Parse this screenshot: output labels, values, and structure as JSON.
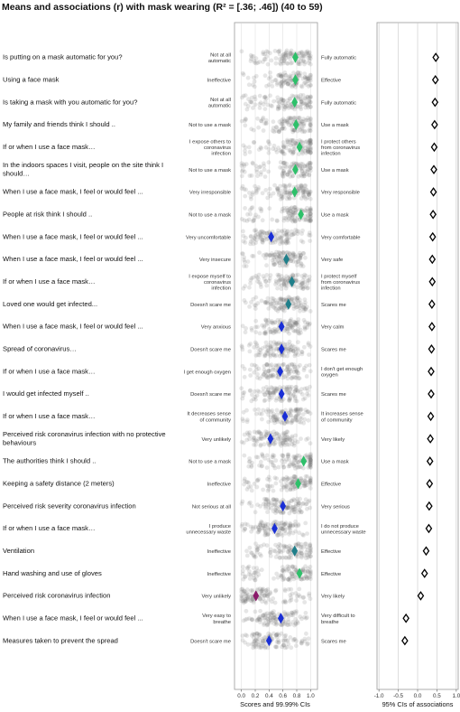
{
  "chart_data": {
    "type": "scatter",
    "title": "Means and associations (r) with mask wearing (R² = [.36; .46]) (40 to 59)",
    "left_panel": {
      "xlabel": "Scores and 99.99% CIs",
      "xlim": [
        -0.1,
        1.1
      ],
      "ticks": [
        "0.0",
        "0.2",
        "0.4",
        "0.6",
        "0.8",
        "1.0"
      ],
      "tick_values": [
        0.0,
        0.2,
        0.4,
        0.6,
        0.8,
        1.0
      ]
    },
    "right_panel": {
      "xlabel": "95% CIs of associations",
      "xlim": [
        -1.05,
        1.05
      ],
      "ticks": [
        "-1.0",
        "-0.5",
        "0.0",
        "0.5",
        "1.0"
      ],
      "tick_values": [
        -1.0,
        -0.5,
        0.0,
        0.5,
        1.0
      ]
    },
    "colors": {
      "green": "#2ec06a",
      "teal": "#1f7f8a",
      "blue": "#1a2fd6",
      "purple": "#8a1a6a",
      "dots": "#777777",
      "panel_border": "#999999",
      "grid": "#d9d9d9"
    },
    "items": [
      {
        "label": [
          "Is putting on a mask automatic for you?"
        ],
        "left_anchor": [
          "Not at all",
          "automatic"
        ],
        "right_anchor": [
          "Fully automatic"
        ],
        "mean": 0.78,
        "color": "green",
        "r": 0.47
      },
      {
        "label": [
          "Using a face mask"
        ],
        "left_anchor": [
          "Ineffective"
        ],
        "right_anchor": [
          "Effective"
        ],
        "mean": 0.78,
        "color": "green",
        "r": 0.46
      },
      {
        "label": [
          "Is taking a mask with you automatic for you?"
        ],
        "left_anchor": [
          "Not at all",
          "automatic"
        ],
        "right_anchor": [
          "Fully automatic"
        ],
        "mean": 0.77,
        "color": "green",
        "r": 0.45
      },
      {
        "label": [
          "My family and friends think I should .."
        ],
        "left_anchor": [
          "Not to use a mask"
        ],
        "right_anchor": [
          "Use a mask"
        ],
        "mean": 0.79,
        "color": "green",
        "r": 0.44
      },
      {
        "label": [
          "If or when I use a face mask…"
        ],
        "left_anchor": [
          "I expose others to",
          "coronavirus",
          "infection"
        ],
        "right_anchor": [
          "I protect others",
          "from coronavirus",
          "infection"
        ],
        "mean": 0.84,
        "color": "green",
        "r": 0.43
      },
      {
        "label": [
          "In the indoors spaces I visit, people on the site think I",
          "should…"
        ],
        "left_anchor": [
          "Not to use a mask"
        ],
        "right_anchor": [
          "Use a mask"
        ],
        "mean": 0.78,
        "color": "green",
        "r": 0.42
      },
      {
        "label": [
          "When I use a face mask, I feel or would feel ..."
        ],
        "left_anchor": [
          "Very irresponsible"
        ],
        "right_anchor": [
          "Very responsible"
        ],
        "mean": 0.77,
        "color": "green",
        "r": 0.41
      },
      {
        "label": [
          "People at risk think I should .."
        ],
        "left_anchor": [
          "Not to use a mask"
        ],
        "right_anchor": [
          "Use a mask"
        ],
        "mean": 0.86,
        "color": "green",
        "r": 0.4
      },
      {
        "label": [
          "When I use a face mask, I feel or would feel ..."
        ],
        "left_anchor": [
          "Very uncomfortable"
        ],
        "right_anchor": [
          "Very comfortable"
        ],
        "mean": 0.43,
        "color": "blue",
        "r": 0.39
      },
      {
        "label": [
          "When I use a face mask, I feel or would feel ..."
        ],
        "left_anchor": [
          "Very insecure"
        ],
        "right_anchor": [
          "Very safe"
        ],
        "mean": 0.65,
        "color": "teal",
        "r": 0.38
      },
      {
        "label": [
          "If or when I use a face mask…"
        ],
        "left_anchor": [
          "I expose myself to",
          "coronavirus",
          "infection"
        ],
        "right_anchor": [
          "I protect myself",
          "from coronavirus",
          "infection"
        ],
        "mean": 0.73,
        "color": "teal",
        "r": 0.38
      },
      {
        "label": [
          "Loved one would get infected..."
        ],
        "left_anchor": [
          "Doesn't scare me"
        ],
        "right_anchor": [
          "Scares me"
        ],
        "mean": 0.68,
        "color": "teal",
        "r": 0.37
      },
      {
        "label": [
          "When I use a face mask, I feel or would feel ..."
        ],
        "left_anchor": [
          "Very anxious"
        ],
        "right_anchor": [
          "Very calm"
        ],
        "mean": 0.58,
        "color": "blue",
        "r": 0.37
      },
      {
        "label": [
          "Spread of coronavirus…"
        ],
        "left_anchor": [
          "Doesn't scare me"
        ],
        "right_anchor": [
          "Scares me"
        ],
        "mean": 0.58,
        "color": "blue",
        "r": 0.36
      },
      {
        "label": [
          "If or when I use a face mask…"
        ],
        "left_anchor": [
          "I get enough oxygen"
        ],
        "right_anchor": [
          "I don't get enough",
          "oxygen"
        ],
        "mean": 0.56,
        "color": "blue",
        "r": 0.35
      },
      {
        "label": [
          "I would get infected myself .."
        ],
        "left_anchor": [
          "Doesn't scare me"
        ],
        "right_anchor": [
          "Scares me"
        ],
        "mean": 0.58,
        "color": "blue",
        "r": 0.35
      },
      {
        "label": [
          "If or when I use a face mask…"
        ],
        "left_anchor": [
          "It decreases sense",
          "of community"
        ],
        "right_anchor": [
          "It increases sense",
          "of community"
        ],
        "mean": 0.63,
        "color": "blue",
        "r": 0.34
      },
      {
        "label": [
          "Perceived risk coronavirus infection with no protective",
          "behaviours"
        ],
        "left_anchor": [
          "Very unlikely"
        ],
        "right_anchor": [
          "Very likely"
        ],
        "mean": 0.42,
        "color": "blue",
        "r": 0.33
      },
      {
        "label": [
          "The authorities think I should .."
        ],
        "left_anchor": [
          "Not to use a mask"
        ],
        "right_anchor": [
          "Use a mask"
        ],
        "mean": 0.9,
        "color": "green",
        "r": 0.32
      },
      {
        "label": [
          "Keeping a safety distance (2 meters)"
        ],
        "left_anchor": [
          "Ineffective"
        ],
        "right_anchor": [
          "Effective"
        ],
        "mean": 0.82,
        "color": "green",
        "r": 0.31
      },
      {
        "label": [
          "Perceived risk severity coronavirus infection"
        ],
        "left_anchor": [
          "Not serious at all"
        ],
        "right_anchor": [
          "Very serious"
        ],
        "mean": 0.6,
        "color": "blue",
        "r": 0.3
      },
      {
        "label": [
          "If or when I use a face mask…"
        ],
        "left_anchor": [
          "I produce",
          "unnecessary waste"
        ],
        "right_anchor": [
          "I do not produce",
          "unnecessary waste"
        ],
        "mean": 0.48,
        "color": "blue",
        "r": 0.29
      },
      {
        "label": [
          "Ventilation"
        ],
        "left_anchor": [
          "Ineffective"
        ],
        "right_anchor": [
          "Effective"
        ],
        "mean": 0.77,
        "color": "teal",
        "r": 0.22
      },
      {
        "label": [
          "Hand washing and use of gloves"
        ],
        "left_anchor": [
          "Ineffective"
        ],
        "right_anchor": [
          "Effective"
        ],
        "mean": 0.84,
        "color": "green",
        "r": 0.18
      },
      {
        "label": [
          "Perceived risk coronavirus infection"
        ],
        "left_anchor": [
          "Very unlikely"
        ],
        "right_anchor": [
          "Very likely"
        ],
        "mean": 0.21,
        "color": "purple",
        "r": 0.08
      },
      {
        "label": [
          "When I use a face mask, I feel or would feel ..."
        ],
        "left_anchor": [
          "Very easy to",
          "breathe"
        ],
        "right_anchor": [
          "Very difficult to",
          "breathe"
        ],
        "mean": 0.57,
        "color": "blue",
        "r": -0.3
      },
      {
        "label": [
          "Measures taken to prevent the spread"
        ],
        "left_anchor": [
          "Doesn't scare me"
        ],
        "right_anchor": [
          "Scares me"
        ],
        "mean": 0.4,
        "color": "blue",
        "r": -0.33
      }
    ]
  }
}
